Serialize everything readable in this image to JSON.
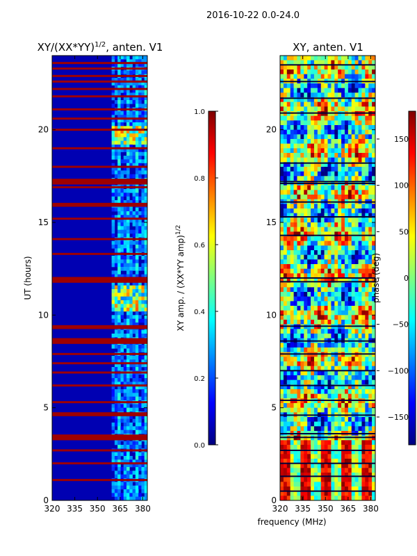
{
  "figure": {
    "suptitle": "2016-10-22 0.0-24.0",
    "xlabel": "frequency (MHz)"
  },
  "colors": {
    "jet_stops": [
      "#00007f",
      "#0000ff",
      "#007fff",
      "#00ffff",
      "#7fff7f",
      "#ffff00",
      "#ff7f00",
      "#ff0000",
      "#7f0000"
    ]
  },
  "chart_data": [
    {
      "type": "heatmap",
      "title_text": "XY/(XX*YY)",
      "title_exp": "1/2",
      "title_suffix": ", anten. V1",
      "xlabel": "",
      "ylabel": "UT (hours)",
      "xlim": [
        320,
        383
      ],
      "ylim": [
        0,
        24
      ],
      "xticks": [
        320,
        335,
        350,
        365,
        380
      ],
      "yticks": [
        0,
        5,
        10,
        15,
        20
      ],
      "colorbar": {
        "label_text": "XY amp. / (XX*YY amp)",
        "label_exp": "1/2",
        "range": [
          0.0,
          1.0
        ],
        "ticks": [
          0.0,
          0.2,
          0.4,
          0.6,
          0.8,
          1.0
        ],
        "tick_labels": [
          "0.0",
          "0.2",
          "0.4",
          "0.6",
          "0.8",
          "1.0"
        ]
      },
      "description": {
        "background_value": 0.05,
        "high_band_start_mhz": 361,
        "bright_time_ranges_h": [
          [
            10.2,
            11.5
          ],
          [
            19.2,
            20.2
          ]
        ],
        "saturated_rows_h": [
          23.6,
          23.3,
          22.9,
          22.6,
          22.2,
          21.8,
          21.1,
          20.6,
          20.0,
          19.0,
          18.0,
          17.3,
          17.2,
          17.1,
          16.9,
          16.0,
          15.9,
          15.2,
          14.1,
          13.3,
          12.0,
          11.9,
          11.8,
          9.4,
          9.3,
          8.7,
          8.6,
          8.5,
          7.9,
          7.4,
          6.9,
          6.2,
          5.3,
          4.7,
          4.6,
          3.5,
          3.4,
          3.3,
          2.7,
          2.0,
          1.1
        ]
      }
    },
    {
      "type": "heatmap",
      "title": "XY, anten. V1",
      "xlabel": "",
      "ylabel": "",
      "xlim": [
        320,
        383
      ],
      "ylim": [
        0,
        24
      ],
      "xticks": [
        320,
        335,
        350,
        365,
        380
      ],
      "yticks": [
        0,
        5,
        10,
        15,
        20
      ],
      "colorbar": {
        "label": "phase (deg)",
        "range": [
          -180,
          180
        ],
        "ticks": [
          -150,
          -100,
          -50,
          0,
          50,
          100,
          150
        ],
        "tick_labels": [
          "−150",
          "−100",
          "−50",
          "0",
          "50",
          "100",
          "150"
        ]
      },
      "description": {
        "value_range_deg": [
          -180,
          180
        ],
        "low_time_phase_hot_band_h": [
          0,
          3.3
        ],
        "black_separator_rows_h": [
          23.5,
          22.6,
          21.7,
          20.9,
          18.2,
          17.2,
          17.1,
          16.1,
          15.3,
          14.3,
          12.0,
          11.8,
          9.4,
          8.6,
          7.9,
          7.0,
          6.2,
          5.4,
          4.6,
          3.6,
          3.4,
          2.7,
          2.0,
          1.3,
          0.5
        ]
      }
    }
  ]
}
